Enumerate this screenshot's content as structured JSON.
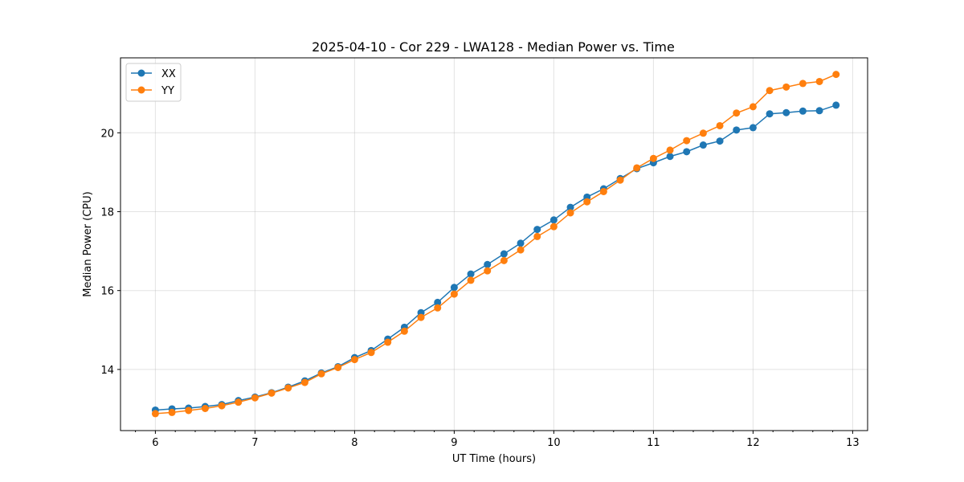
{
  "chart_data": {
    "type": "line",
    "title": "2025-04-10 - Cor 229 - LWA128 - Median Power vs. Time",
    "xlabel": "UT Time (hours)",
    "ylabel": "Median Power (CPU)",
    "xlim": [
      5.65,
      13.15
    ],
    "ylim": [
      12.45,
      21.9
    ],
    "x_ticks": [
      6,
      7,
      8,
      9,
      10,
      11,
      12,
      13
    ],
    "y_ticks": [
      14,
      16,
      18,
      20
    ],
    "grid": true,
    "legend_position": "upper-left",
    "x": [
      6.0,
      6.1667,
      6.3333,
      6.5,
      6.6667,
      6.8333,
      7.0,
      7.1667,
      7.3333,
      7.5,
      7.6667,
      7.8333,
      8.0,
      8.1667,
      8.3333,
      8.5,
      8.6667,
      8.8333,
      9.0,
      9.1667,
      9.3333,
      9.5,
      9.6667,
      9.8333,
      10.0,
      10.1667,
      10.3333,
      10.5,
      10.6667,
      10.8333,
      11.0,
      11.1667,
      11.3333,
      11.5,
      11.6667,
      11.8333,
      12.0,
      12.1667,
      12.3333,
      12.5,
      12.6667,
      12.8333
    ],
    "series": [
      {
        "name": "XX",
        "color": "#1f77b4",
        "values": [
          12.97,
          13.0,
          13.02,
          13.06,
          13.11,
          13.21,
          13.3,
          13.41,
          13.55,
          13.71,
          13.91,
          14.07,
          14.3,
          14.48,
          14.77,
          15.07,
          15.44,
          15.7,
          16.08,
          16.42,
          16.66,
          16.93,
          17.2,
          17.55,
          17.79,
          18.11,
          18.37,
          18.58,
          18.84,
          19.09,
          19.24,
          19.4,
          19.52,
          19.69,
          19.79,
          20.07,
          20.13,
          20.48,
          20.51,
          20.55,
          20.56,
          20.7
        ]
      },
      {
        "name": "YY",
        "color": "#ff7f0e",
        "values": [
          12.88,
          12.91,
          12.96,
          13.01,
          13.08,
          13.17,
          13.28,
          13.4,
          13.53,
          13.67,
          13.89,
          14.05,
          14.25,
          14.43,
          14.69,
          14.97,
          15.32,
          15.56,
          15.91,
          16.26,
          16.5,
          16.76,
          17.03,
          17.37,
          17.62,
          17.97,
          18.25,
          18.51,
          18.8,
          19.11,
          19.35,
          19.56,
          19.8,
          19.99,
          20.18,
          20.5,
          20.66,
          21.07,
          21.16,
          21.25,
          21.3,
          21.48
        ]
      }
    ]
  }
}
